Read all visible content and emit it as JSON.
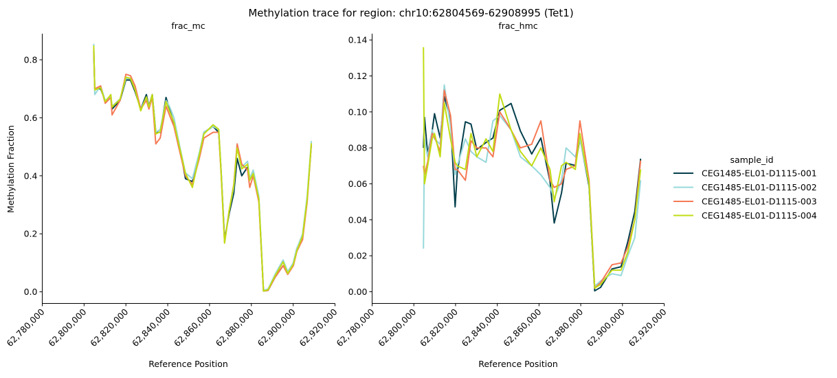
{
  "chart_data": {
    "type": "line",
    "title": "Methylation trace for region: chr10:62804569-62908995 (Tet1)",
    "legend": {
      "title": "sample_id",
      "placement": "right",
      "entries": [
        {
          "name": "CEG1485-EL01-D1115-001",
          "color": "#033f4c"
        },
        {
          "name": "CEG1485-EL01-D1115-002",
          "color": "#97d8da"
        },
        {
          "name": "CEG1485-EL01-D1115-003",
          "color": "#f57a55"
        },
        {
          "name": "CEG1485-EL01-D1115-004",
          "color": "#c1dc14"
        }
      ]
    },
    "panels": [
      {
        "title": "frac_mc",
        "xlabel": "Reference Position",
        "ylabel": "Methylation Fraction",
        "xlim": [
          62776000,
          62920000
        ],
        "ylim": [
          -0.04,
          0.89
        ],
        "xticks": [
          62780000,
          62800000,
          62820000,
          62840000,
          62860000,
          62880000,
          62900000,
          62920000
        ],
        "xtick_labels": [
          "62,780,000",
          "62,800,000",
          "62,820,000",
          "62,840,000",
          "62,860,000",
          "62,880,000",
          "62,900,000",
          "62,920,000"
        ],
        "yticks": [
          0.0,
          0.2,
          0.4,
          0.6,
          0.8
        ],
        "ytick_labels": [
          "0.0",
          "0.2",
          "0.4",
          "0.6",
          "0.8"
        ],
        "x": [
          62804600,
          62805100,
          62807900,
          62810100,
          62812800,
          62813400,
          62817200,
          62820000,
          62822200,
          62824400,
          62827100,
          62829800,
          62831000,
          62832600,
          62834300,
          62836400,
          62839200,
          62840800,
          62843000,
          62845200,
          62848500,
          62851800,
          62855100,
          62857300,
          62861700,
          62864400,
          62865500,
          62867200,
          62869400,
          62871600,
          62873200,
          62875400,
          62878200,
          62879200,
          62880900,
          62883600,
          62885800,
          62888000,
          62891300,
          62895200,
          62897400,
          62900100,
          62901800,
          62904500,
          62906700,
          62908700
        ],
        "series": [
          {
            "name": "CEG1485-EL01-D1115-001",
            "values": [
              0.83,
              0.7,
              0.7,
              0.66,
              0.67,
              0.63,
              0.66,
              0.73,
              0.73,
              0.69,
              0.63,
              0.68,
              0.64,
              0.68,
              0.55,
              0.55,
              0.67,
              0.63,
              0.58,
              0.52,
              0.39,
              0.38,
              0.47,
              0.55,
              0.57,
              0.55,
              0.42,
              0.18,
              0.27,
              0.34,
              0.46,
              0.4,
              0.43,
              0.39,
              0.4,
              0.32,
              0.003,
              0.005,
              0.05,
              0.09,
              0.065,
              0.1,
              0.15,
              0.19,
              0.32,
              0.51
            ]
          },
          {
            "name": "CEG1485-EL01-D1115-002",
            "values": [
              0.855,
              0.68,
              0.71,
              0.66,
              0.67,
              0.64,
              0.665,
              0.735,
              0.735,
              0.7,
              0.63,
              0.67,
              0.64,
              0.67,
              0.55,
              0.56,
              0.66,
              0.64,
              0.6,
              0.52,
              0.41,
              0.39,
              0.48,
              0.55,
              0.57,
              0.56,
              0.42,
              0.17,
              0.28,
              0.36,
              0.51,
              0.43,
              0.45,
              0.39,
              0.42,
              0.33,
              0.005,
              0.01,
              0.06,
              0.11,
              0.07,
              0.1,
              0.15,
              0.2,
              0.33,
              0.52
            ]
          },
          {
            "name": "CEG1485-EL01-D1115-003",
            "values": [
              0.84,
              0.7,
              0.71,
              0.65,
              0.67,
              0.61,
              0.66,
              0.75,
              0.745,
              0.71,
              0.63,
              0.66,
              0.63,
              0.67,
              0.51,
              0.53,
              0.64,
              0.61,
              0.57,
              0.5,
              0.4,
              0.37,
              0.46,
              0.53,
              0.55,
              0.55,
              0.41,
              0.17,
              0.28,
              0.37,
              0.51,
              0.44,
              0.42,
              0.36,
              0.4,
              0.31,
              0.003,
              0.005,
              0.05,
              0.09,
              0.06,
              0.09,
              0.14,
              0.18,
              0.31,
              0.51
            ]
          },
          {
            "name": "CEG1485-EL01-D1115-004",
            "values": [
              0.849,
              0.696,
              0.704,
              0.656,
              0.68,
              0.637,
              0.664,
              0.74,
              0.736,
              0.696,
              0.624,
              0.672,
              0.637,
              0.68,
              0.544,
              0.552,
              0.656,
              0.624,
              0.584,
              0.512,
              0.408,
              0.36,
              0.472,
              0.544,
              0.576,
              0.56,
              0.416,
              0.168,
              0.28,
              0.368,
              0.496,
              0.424,
              0.44,
              0.384,
              0.408,
              0.32,
              0.003,
              0.007,
              0.055,
              0.103,
              0.063,
              0.095,
              0.143,
              0.192,
              0.32,
              0.512
            ]
          }
        ]
      },
      {
        "title": "frac_hmc",
        "xlabel": "Reference Position",
        "ylabel": "",
        "xlim": [
          62776000,
          62920000
        ],
        "ylim": [
          -0.0065,
          0.1435
        ],
        "xticks": [
          62780000,
          62800000,
          62820000,
          62840000,
          62860000,
          62880000,
          62900000,
          62920000
        ],
        "xtick_labels": [
          "62,780,000",
          "62,800,000",
          "62,820,000",
          "62,840,000",
          "62,860,000",
          "62,880,000",
          "62,900,000",
          "62,920,000"
        ],
        "yticks": [
          0.0,
          0.02,
          0.04,
          0.06,
          0.08,
          0.1,
          0.12,
          0.14
        ],
        "ytick_labels": [
          "0.00",
          "0.02",
          "0.04",
          "0.06",
          "0.08",
          "0.10",
          "0.12",
          "0.14"
        ],
        "x": [
          62804600,
          62805100,
          62806600,
          62808800,
          62809900,
          62812600,
          62814600,
          62817600,
          62819800,
          62820800,
          62824700,
          62827400,
          62830200,
          62834600,
          62837900,
          62841200,
          62846600,
          62851100,
          62856500,
          62860900,
          62865300,
          62867300,
          62870800,
          62873000,
          62877400,
          62879600,
          62884000,
          62886700,
          62889500,
          62895000,
          62899300,
          62902600,
          62905900,
          62908700
        ],
        "series": [
          {
            "name": "CEG1485-EL01-D1115-001",
            "values": [
              0.08,
              0.097,
              0.0766,
              0.0894,
              0.099,
              0.0855,
              0.1086,
              0.0958,
              0.0472,
              0.0664,
              0.0945,
              0.0932,
              0.0791,
              0.083,
              0.0855,
              0.1009,
              0.1047,
              0.0894,
              0.0766,
              0.0855,
              0.0613,
              0.0382,
              0.0549,
              0.0715,
              0.0702,
              0.0855,
              0.0587,
              0.0005,
              0.0024,
              0.0127,
              0.0139,
              0.028,
              0.0446,
              0.074
            ]
          },
          {
            "name": "CEG1485-EL01-D1115-002",
            "values": [
              0.024,
              0.085,
              0.075,
              0.09,
              0.085,
              0.082,
              0.115,
              0.092,
              0.065,
              0.07,
              0.085,
              0.078,
              0.075,
              0.072,
              0.095,
              0.098,
              0.09,
              0.075,
              0.07,
              0.065,
              0.058,
              0.052,
              0.062,
              0.08,
              0.075,
              0.085,
              0.06,
              0.003,
              0.006,
              0.01,
              0.009,
              0.02,
              0.03,
              0.062
            ]
          },
          {
            "name": "CEG1485-EL01-D1115-003",
            "values": [
              0.07,
              0.065,
              0.072,
              0.088,
              0.086,
              0.078,
              0.112,
              0.098,
              0.068,
              0.068,
              0.062,
              0.084,
              0.08,
              0.08,
              0.075,
              0.1,
              0.09,
              0.08,
              0.082,
              0.095,
              0.062,
              0.058,
              0.06,
              0.068,
              0.07,
              0.095,
              0.062,
              0.002,
              0.005,
              0.015,
              0.016,
              0.025,
              0.04,
              0.073
            ]
          },
          {
            "name": "CEG1485-EL01-D1115-004",
            "values": [
              0.136,
              0.06,
              0.07,
              0.085,
              0.088,
              0.075,
              0.105,
              0.085,
              0.072,
              0.07,
              0.068,
              0.088,
              0.075,
              0.085,
              0.078,
              0.11,
              0.09,
              0.078,
              0.07,
              0.08,
              0.068,
              0.05,
              0.07,
              0.072,
              0.068,
              0.088,
              0.06,
              0.002,
              0.004,
              0.012,
              0.012,
              0.022,
              0.04,
              0.068
            ]
          }
        ]
      }
    ]
  }
}
